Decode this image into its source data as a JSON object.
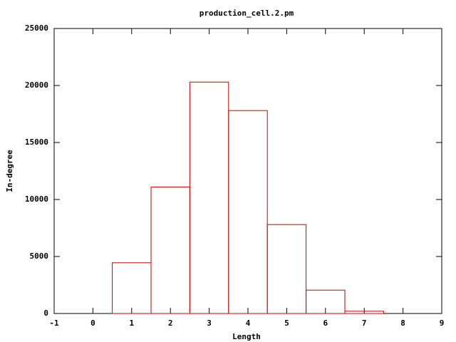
{
  "chart_data": {
    "type": "histogram",
    "title": "production_cell.2.pm",
    "xlabel": "Length",
    "ylabel": "In-degree",
    "bins": [
      0.5,
      1.5,
      2.5,
      3.5,
      4.5,
      5.5,
      6.5,
      7.5
    ],
    "values": [
      4450,
      11100,
      20300,
      17800,
      7800,
      2050,
      200
    ],
    "color": "#cc0000",
    "xlim": [
      -1,
      9
    ],
    "xticks": [
      -1,
      0,
      1,
      2,
      3,
      4,
      5,
      6,
      7,
      8,
      9
    ],
    "ylim": [
      0,
      25000
    ],
    "yticks": [
      0,
      5000,
      10000,
      15000,
      20000,
      25000
    ]
  }
}
